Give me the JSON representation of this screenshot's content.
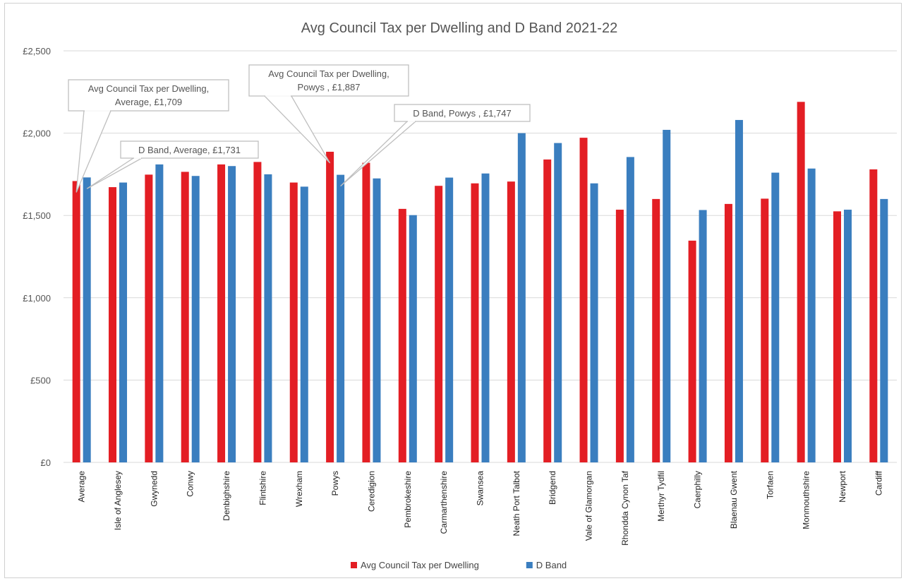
{
  "chart_data": {
    "type": "bar",
    "title": "Avg Council Tax per Dwelling and D Band 2021-22",
    "categories": [
      "Average",
      "Isle of Anglesey",
      "Gwynedd",
      "Conwy",
      "Denbighshire",
      "Flintshire",
      "Wrexham",
      "Powys",
      "Ceredigion",
      "Pembrokeshire",
      "Carmarthenshire",
      "Swansea",
      "Neath Port Talbot",
      "Bridgend",
      "Vale of Glamorgan",
      "Rhondda Cynon Taf",
      "Merthyr Tydfil",
      "Caerphilly",
      "Blaenau Gwent",
      "Torfaen",
      "Monmouthshire",
      "Newport",
      "Cardiff"
    ],
    "series": [
      {
        "name": "Avg Council Tax per Dwelling",
        "color": "#e31e24",
        "values": [
          1709,
          1672,
          1748,
          1765,
          1810,
          1825,
          1700,
          1887,
          1820,
          1540,
          1680,
          1695,
          1706,
          1840,
          1972,
          1535,
          1600,
          1347,
          1570,
          1602,
          2190,
          1525,
          1780
        ]
      },
      {
        "name": "D Band",
        "color": "#3a7ebf",
        "values": [
          1731,
          1700,
          1810,
          1740,
          1800,
          1750,
          1675,
          1747,
          1725,
          1502,
          1730,
          1755,
          2000,
          1940,
          1695,
          1855,
          2020,
          1533,
          2080,
          1760,
          1785,
          1535,
          1600
        ]
      }
    ],
    "yticks": [
      "£0",
      "£500",
      "£1,000",
      "£1,500",
      "£2,000",
      "£2,500"
    ],
    "ylim": [
      0,
      2500
    ],
    "grid": true,
    "legend_position": "bottom",
    "callouts": [
      {
        "text": [
          "Avg Council Tax per Dwelling,",
          "Average, £1,709"
        ],
        "category": 0,
        "series": 0
      },
      {
        "text": [
          "D Band, Average, £1,731"
        ],
        "category": 0,
        "series": 1
      },
      {
        "text": [
          "Avg Council Tax per Dwelling,",
          "Powys , £1,887"
        ],
        "category": 7,
        "series": 0
      },
      {
        "text": [
          "D Band, Powys , £1,747"
        ],
        "category": 7,
        "series": 1
      }
    ]
  }
}
